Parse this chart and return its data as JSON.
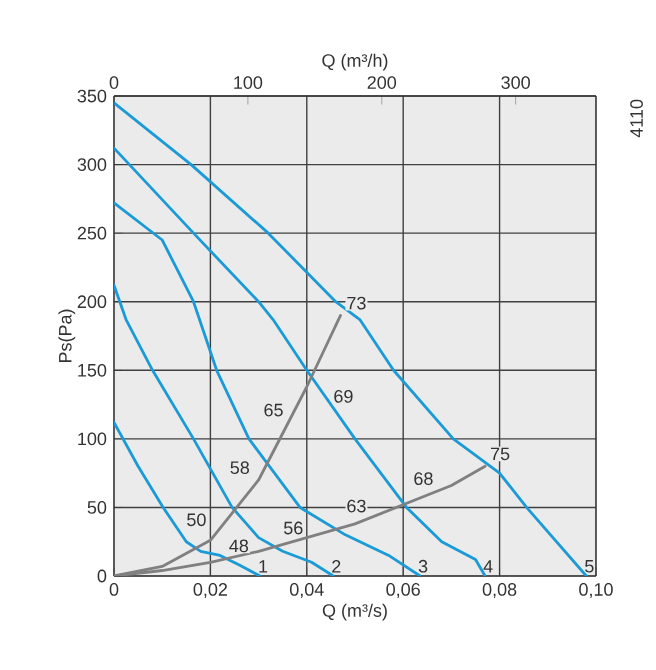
{
  "chart_data": {
    "type": "line",
    "xlabel": "Q (m³/s)",
    "ylabel": "Ps(Pa)",
    "x2label": "Q (m³/h)",
    "xlim": [
      0,
      0.1
    ],
    "ylim": [
      0,
      350
    ],
    "x2lim": [
      0,
      360
    ],
    "xticks": [
      0,
      {
        "value": 0.02,
        "label": "0,02"
      },
      {
        "value": 0.04,
        "label": "0,04"
      },
      {
        "value": 0.06,
        "label": "0,06"
      },
      {
        "value": 0.08,
        "label": "0,08"
      },
      {
        "value": 0.1,
        "label": "0,10"
      }
    ],
    "yticks": [
      0,
      50,
      100,
      150,
      200,
      250,
      300,
      350
    ],
    "x2ticks": [
      0,
      100,
      200,
      300
    ],
    "grid": true,
    "series": [
      {
        "name": "1",
        "color": "#1a9ad6",
        "x": [
          0,
          0.005,
          0.0102,
          0.015,
          0.018,
          0.022,
          0.026,
          0.0303
        ],
        "values": [
          112,
          80,
          50,
          25,
          18,
          15,
          8,
          0
        ]
      },
      {
        "name": "2",
        "color": "#1a9ad6",
        "x": [
          0,
          0.0025,
          0.008,
          0.0165,
          0.0245,
          0.03,
          0.035,
          0.041,
          0.0455
        ],
        "values": [
          212,
          187,
          150,
          100,
          50,
          28,
          18,
          10,
          0
        ]
      },
      {
        "name": "3",
        "color": "#1a9ad6",
        "x": [
          0,
          0.01,
          0.0165,
          0.0213,
          0.028,
          0.0386,
          0.048,
          0.057,
          0.0635
        ],
        "values": [
          272,
          245,
          200,
          150,
          100,
          50,
          30,
          15,
          0
        ]
      },
      {
        "name": "4",
        "color": "#1a9ad6",
        "x": [
          0,
          0.0165,
          0.03,
          0.033,
          0.04,
          0.05,
          0.0607,
          0.068,
          0.075,
          0.077
        ],
        "values": [
          312,
          250,
          200,
          187,
          150,
          100,
          50,
          25,
          12,
          0
        ]
      },
      {
        "name": "5",
        "color": "#1a9ad6",
        "x": [
          0,
          0.016,
          0.032,
          0.046,
          0.051,
          0.058,
          0.0704,
          0.08,
          0.0856,
          0.098
        ],
        "values": [
          345,
          300,
          250,
          200,
          187,
          150,
          100,
          75,
          50,
          0
        ]
      },
      {
        "color": "#808080",
        "x": [
          0,
          0.01,
          0.02,
          0.03,
          0.04,
          0.047
        ],
        "values": [
          0,
          7,
          26,
          70,
          138,
          190
        ]
      },
      {
        "color": "#808080",
        "x": [
          0,
          0.01,
          0.02,
          0.03,
          0.04,
          0.05,
          0.06,
          0.07,
          0.077
        ],
        "values": [
          0,
          4,
          10,
          18,
          28,
          38,
          52,
          66,
          80
        ]
      }
    ],
    "annotations": [
      {
        "text": "48",
        "x": 0.0259,
        "y": 22
      },
      {
        "text": "50",
        "x": 0.0171,
        "y": 41
      },
      {
        "text": "56",
        "x": 0.0372,
        "y": 35
      },
      {
        "text": "58",
        "x": 0.0261,
        "y": 79
      },
      {
        "text": "63",
        "x": 0.0503,
        "y": 51
      },
      {
        "text": "65",
        "x": 0.0331,
        "y": 121
      },
      {
        "text": "68",
        "x": 0.0642,
        "y": 71
      },
      {
        "text": "69",
        "x": 0.0476,
        "y": 131
      },
      {
        "text": "73",
        "x": 0.0503,
        "y": 199
      },
      {
        "text": "75",
        "x": 0.0801,
        "y": 89
      },
      "4110"
    ]
  }
}
